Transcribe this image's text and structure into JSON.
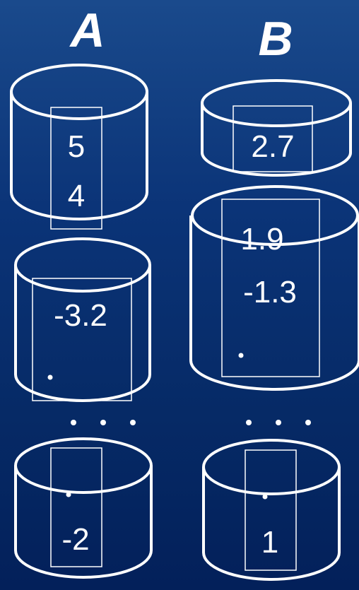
{
  "columns": {
    "a": {
      "title": "A",
      "bucket1": {
        "values": [
          "5",
          "4"
        ]
      },
      "bucket2": {
        "values": [
          "-3.2"
        ]
      },
      "bucket3": {
        "values": [
          "-2"
        ]
      }
    },
    "b": {
      "title": "B",
      "bucket1": {
        "values": [
          "2.7"
        ]
      },
      "bucket2": {
        "values": [
          "1.9",
          "-1.3"
        ]
      },
      "bucket3": {
        "values": [
          "1"
        ]
      }
    }
  },
  "colors": {
    "background_top": "#1a4a8c",
    "background_bottom": "#03205a",
    "foreground": "#ffffff"
  }
}
